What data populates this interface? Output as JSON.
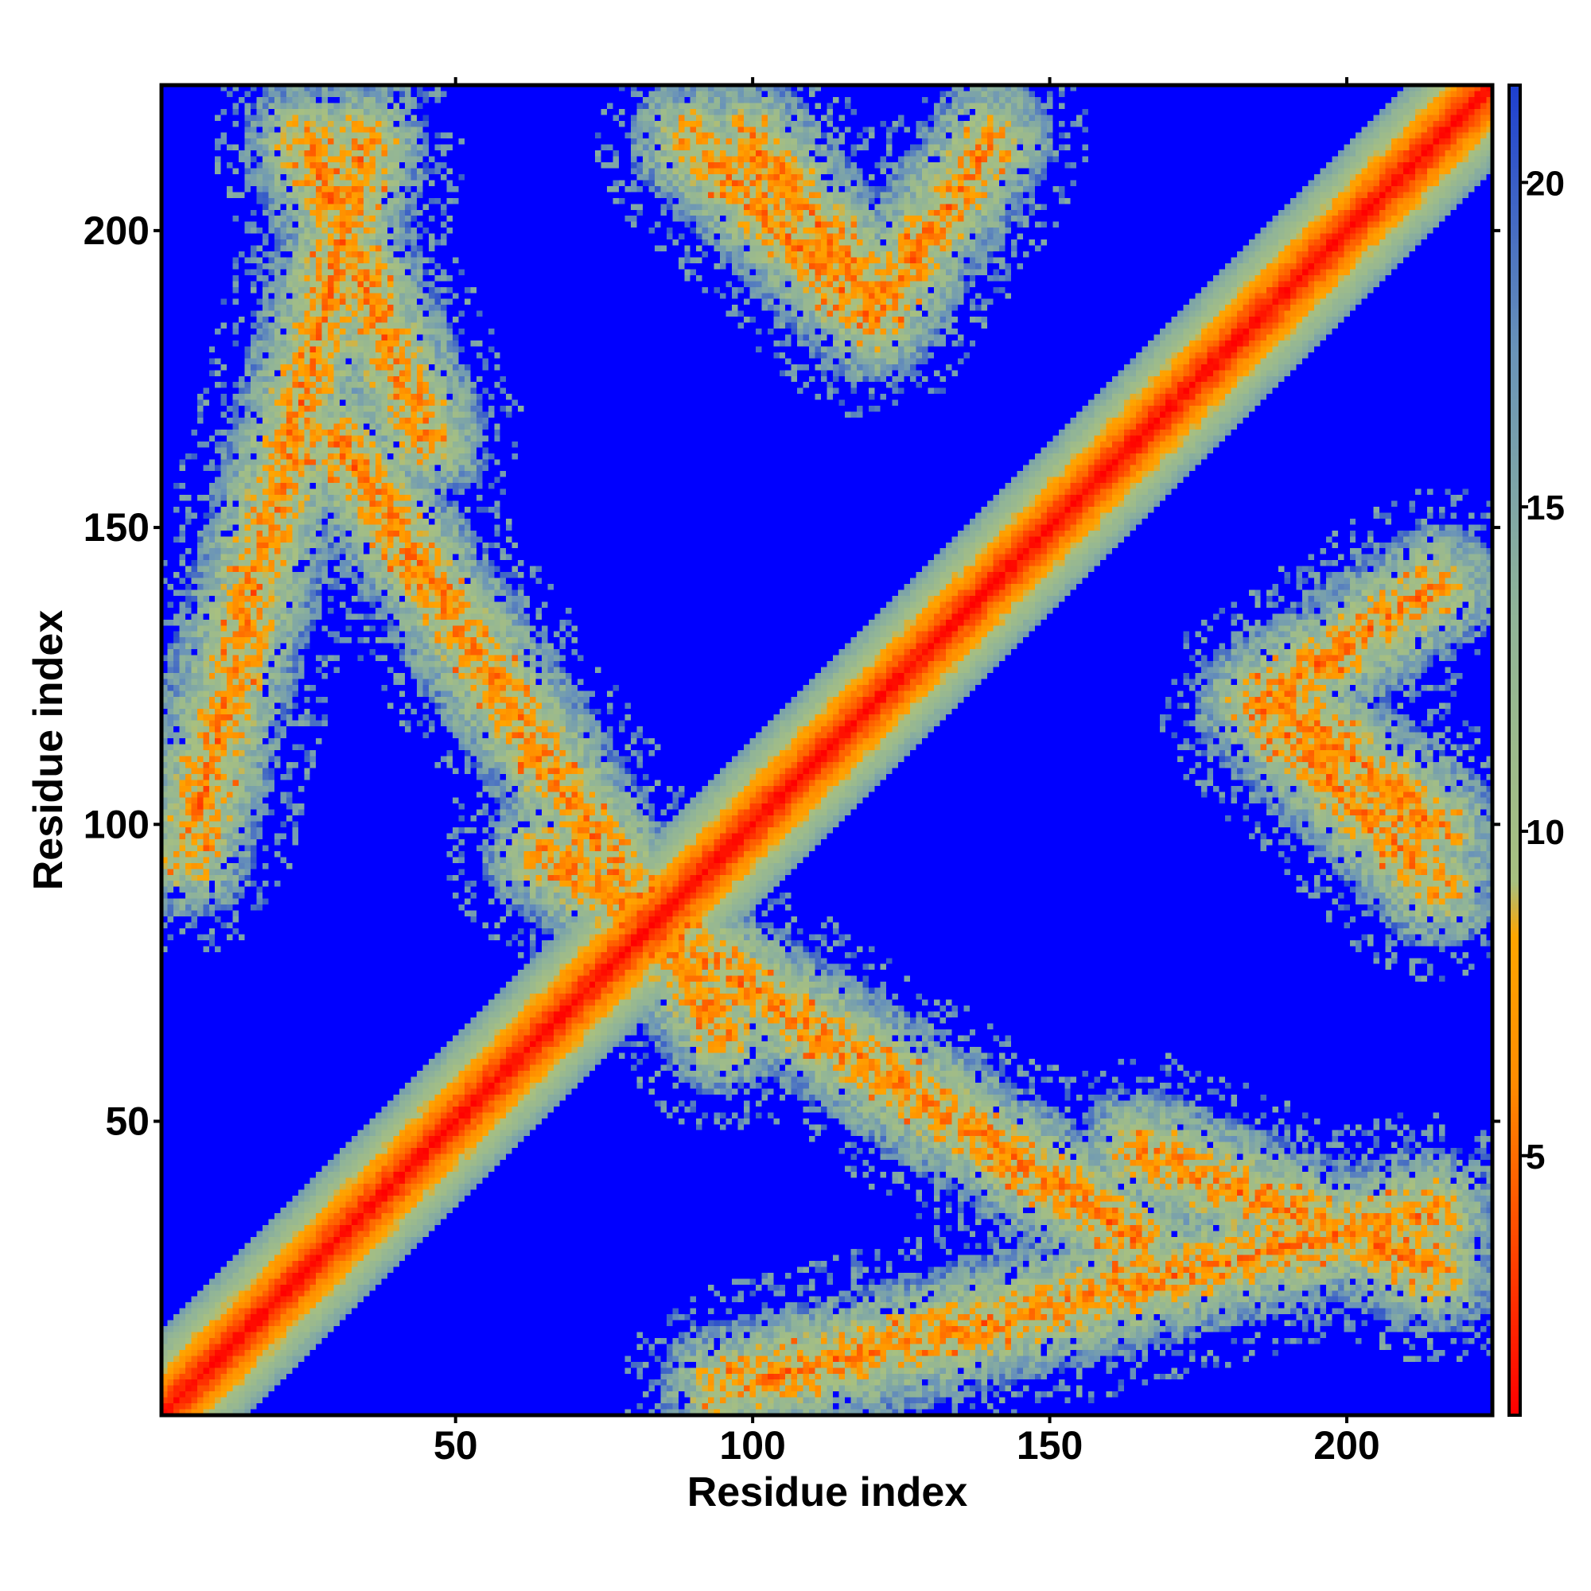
{
  "chart_data": {
    "type": "heatmap",
    "title": "",
    "xlabel": "Residue index",
    "ylabel": "Residue index",
    "xlim": [
      1,
      224
    ],
    "ylim": [
      1,
      224
    ],
    "x_ticks": [
      50,
      100,
      150,
      200
    ],
    "y_ticks": [
      50,
      100,
      150,
      200
    ],
    "grid": false,
    "matrix_description": "Symmetric residue-residue distance map; strong near-diagonal band of low values with off-diagonal X-shaped contact bands",
    "colorbar": {
      "range": [
        1,
        21.5
      ],
      "ticks": [
        5,
        10,
        15,
        20
      ],
      "colors": [
        {
          "stop": 0.0,
          "color": "#ff0000"
        },
        {
          "stop": 0.25,
          "color": "#ff8c00"
        },
        {
          "stop": 0.36,
          "color": "#ffa500"
        },
        {
          "stop": 0.4,
          "color": "#a8c080"
        },
        {
          "stop": 0.6,
          "color": "#90b498"
        },
        {
          "stop": 0.8,
          "color": "#6a94b8"
        },
        {
          "stop": 1.0,
          "color": "#1e40d0"
        }
      ],
      "background_color": "#0000ff"
    },
    "contact_bands": [
      {
        "from": [
          5,
          95
        ],
        "to": [
          35,
          215
        ],
        "note": "left zigzag arm"
      },
      {
        "from": [
          65,
          95
        ],
        "to": [
          165,
          30
        ],
        "note": "lower chevron"
      },
      {
        "from": [
          100,
          215
        ],
        "to": [
          120,
          190
        ],
        "note": "upper-middle arm"
      },
      {
        "from": [
          140,
          215
        ],
        "to": [
          120,
          185
        ],
        "note": "upper arm"
      },
      {
        "from": [
          165,
          45
        ],
        "to": [
          215,
          25
        ],
        "note": "lower-right arm"
      },
      {
        "from": [
          185,
          120
        ],
        "to": [
          215,
          90
        ],
        "note": "right arm"
      }
    ]
  }
}
